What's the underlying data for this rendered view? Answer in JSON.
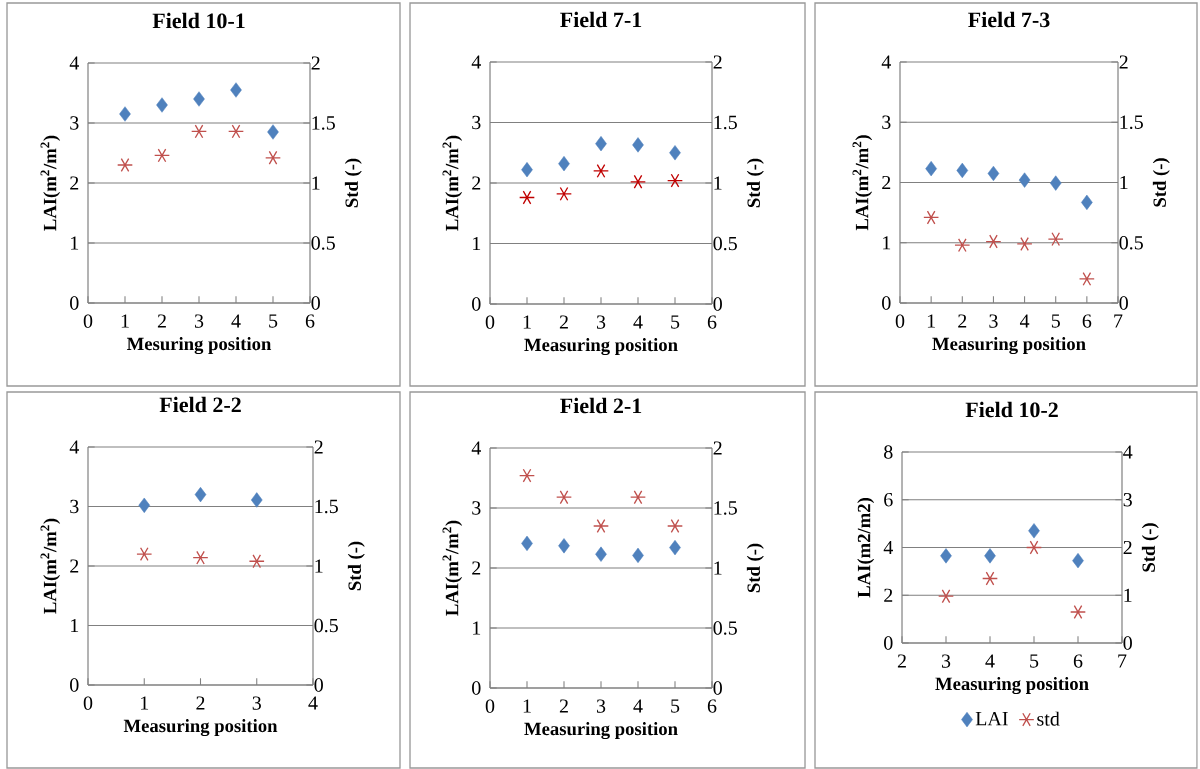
{
  "chart_data": [
    {
      "type": "scatter",
      "title": "Field 10-1",
      "xlabel": "Mesuring position",
      "ylabel": "LAI(m$^{2}$/m$^{2}$)",
      "y2label": "Std (-)",
      "x": [
        1,
        2,
        3,
        4,
        5
      ],
      "xlim": [
        0,
        6
      ],
      "xticks": [
        0,
        1,
        2,
        3,
        4,
        5,
        6
      ],
      "ylim": [
        0,
        4
      ],
      "yticks": [
        0,
        1,
        2,
        3,
        4
      ],
      "y2lim": [
        0,
        2
      ],
      "y2ticks": [
        0,
        0.5,
        1,
        1.5,
        2
      ],
      "grid": "y",
      "series": [
        {
          "color": "#4f81bd",
          "marker": "diamond",
          "values": [
            3.15,
            3.3,
            3.4,
            3.55,
            2.85
          ]
        },
        {
          "color": "#c0504d",
          "marker": "cross",
          "axis": "y2",
          "values": [
            1.15,
            1.23,
            1.43,
            1.43,
            1.21
          ]
        }
      ]
    },
    {
      "type": "scatter",
      "title": "Field 7-1",
      "xlabel": "Measuring position",
      "ylabel": "LAI(m$^{2}$/m$^{2}$)",
      "y2label": "Std (-)",
      "x": [
        1,
        2,
        3,
        4,
        5
      ],
      "xlim": [
        0,
        6
      ],
      "xticks": [
        0,
        1,
        2,
        3,
        4,
        5,
        6
      ],
      "ylim": [
        0,
        4
      ],
      "yticks": [
        0,
        1,
        2,
        3,
        4
      ],
      "y2lim": [
        0,
        2
      ],
      "y2ticks": [
        0,
        0.5,
        1,
        1.5,
        2
      ],
      "grid": "y",
      "series": [
        {
          "color": "#4f81bd",
          "marker": "diamond",
          "values": [
            2.22,
            2.32,
            2.65,
            2.63,
            2.5
          ]
        },
        {
          "color": "#c00000",
          "marker": "cross",
          "axis": "y2",
          "values": [
            0.88,
            0.91,
            1.1,
            1.01,
            1.02
          ]
        }
      ]
    },
    {
      "type": "scatter",
      "title": "Field 7-3",
      "xlabel": "Measuring position",
      "ylabel": "LAI(m$^{2}$/m$^{2}$)",
      "y2label": "Std (-)",
      "x": [
        1,
        2,
        3,
        4,
        5,
        6
      ],
      "xlim": [
        0,
        7
      ],
      "xticks": [
        0,
        1,
        2,
        3,
        4,
        5,
        6,
        7
      ],
      "ylim": [
        0,
        4
      ],
      "yticks": [
        0,
        1,
        2,
        3,
        4
      ],
      "y2lim": [
        0,
        2
      ],
      "y2ticks": [
        0,
        0.5,
        1,
        1.5,
        2
      ],
      "grid": "y",
      "series": [
        {
          "color": "#4f81bd",
          "marker": "diamond",
          "values": [
            2.23,
            2.2,
            2.15,
            2.04,
            1.99,
            1.67
          ]
        },
        {
          "color": "#c0504d",
          "marker": "cross",
          "axis": "y2",
          "values": [
            0.71,
            0.48,
            0.51,
            0.49,
            0.53,
            0.2
          ]
        }
      ]
    },
    {
      "type": "scatter",
      "title": "Field 2-2",
      "xlabel": "Measuring position",
      "ylabel": "LAI(m$^{2}$/m$^{2}$)",
      "y2label": "Std (-)",
      "x": [
        1,
        2,
        3
      ],
      "xlim": [
        0,
        4
      ],
      "xticks": [
        0,
        1,
        2,
        3,
        4
      ],
      "ylim": [
        0,
        4
      ],
      "yticks": [
        0,
        1,
        2,
        3,
        4
      ],
      "y2lim": [
        0,
        2
      ],
      "y2ticks": [
        0,
        0.5,
        1,
        1.5,
        2
      ],
      "grid": "y",
      "series": [
        {
          "color": "#4f81bd",
          "marker": "diamond",
          "values": [
            3.02,
            3.2,
            3.11
          ]
        },
        {
          "color": "#c0504d",
          "marker": "cross",
          "axis": "y2",
          "values": [
            1.1,
            1.07,
            1.04
          ]
        }
      ]
    },
    {
      "type": "scatter",
      "title": "Field 2-1",
      "xlabel": "Measuring position",
      "ylabel": "LAI(m$^{2}$/m$^{2}$)",
      "y2label": "Std (-)",
      "x": [
        1,
        2,
        3,
        4,
        5
      ],
      "xlim": [
        0,
        6
      ],
      "xticks": [
        0,
        1,
        2,
        3,
        4,
        5,
        6
      ],
      "ylim": [
        0,
        4
      ],
      "yticks": [
        0,
        1,
        2,
        3,
        4
      ],
      "y2lim": [
        0,
        2
      ],
      "y2ticks": [
        0,
        0.5,
        1,
        1.5,
        2
      ],
      "grid": "y",
      "series": [
        {
          "color": "#4f81bd",
          "marker": "diamond",
          "values": [
            2.41,
            2.37,
            2.23,
            2.21,
            2.34
          ]
        },
        {
          "color": "#c0504d",
          "marker": "cross",
          "axis": "y2",
          "values": [
            1.77,
            1.59,
            1.35,
            1.59,
            1.35
          ]
        }
      ]
    },
    {
      "type": "scatter",
      "title": "Field 10-2",
      "xlabel": "Measuring position",
      "ylabel": "LAI(m2/m2)",
      "y2label": "Std (-)",
      "x": [
        3,
        4,
        5,
        6
      ],
      "xlim": [
        2,
        7
      ],
      "xticks": [
        2,
        3,
        4,
        5,
        6,
        7
      ],
      "ylim": [
        0,
        8
      ],
      "yticks": [
        0,
        2,
        4,
        6,
        8
      ],
      "y2lim": [
        0,
        4
      ],
      "y2ticks": [
        0,
        1,
        2,
        3,
        4
      ],
      "grid": "y",
      "legend": "bottom",
      "series": [
        {
          "name": "LAI",
          "color": "#4f81bd",
          "marker": "diamond",
          "values": [
            3.65,
            3.65,
            4.7,
            3.45
          ]
        },
        {
          "name": "std",
          "color": "#c0504d",
          "marker": "cross",
          "axis": "y2",
          "values": [
            0.98,
            1.35,
            2.0,
            0.65
          ]
        }
      ]
    }
  ]
}
